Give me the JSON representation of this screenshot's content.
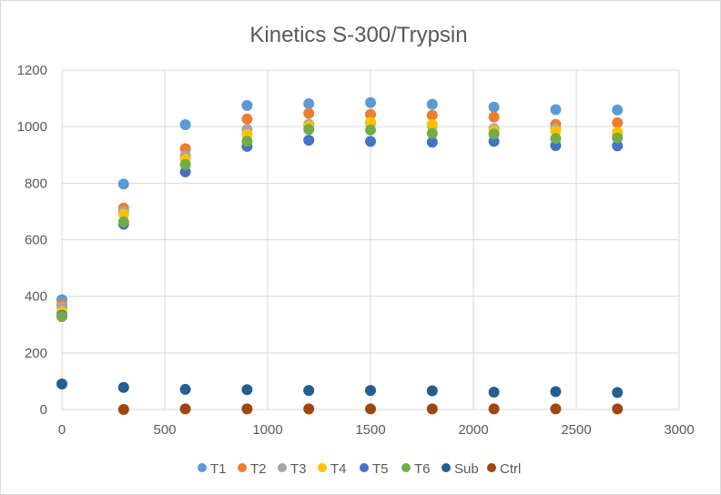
{
  "chart_data": {
    "type": "scatter",
    "title": "Kinetics S-300/Trypsin",
    "xlabel": "",
    "ylabel": "",
    "xlim": [
      0,
      3000
    ],
    "ylim": [
      0,
      1200
    ],
    "xticks": [
      "0",
      "500",
      "1000",
      "1500",
      "2000",
      "2500",
      "3000"
    ],
    "yticks": [
      "0",
      "200",
      "400",
      "600",
      "800",
      "1000",
      "1200"
    ],
    "grid": true,
    "legend_position": "bottom",
    "series": [
      {
        "name": "T1",
        "color": "#5B9BD5",
        "points": [
          [
            0,
            388
          ],
          [
            300,
            797
          ],
          [
            600,
            1007
          ],
          [
            900,
            1075
          ],
          [
            1200,
            1081
          ],
          [
            1500,
            1085
          ],
          [
            1800,
            1079
          ],
          [
            2100,
            1069
          ],
          [
            2400,
            1060
          ],
          [
            2700,
            1059
          ]
        ]
      },
      {
        "name": "T2",
        "color": "#ED7D31",
        "points": [
          [
            0,
            370
          ],
          [
            300,
            712
          ],
          [
            600,
            922
          ],
          [
            900,
            1027
          ],
          [
            1200,
            1047
          ],
          [
            1500,
            1043
          ],
          [
            1800,
            1040
          ],
          [
            2100,
            1034
          ],
          [
            2400,
            1008
          ],
          [
            2700,
            1014
          ]
        ]
      },
      {
        "name": "T3",
        "color": "#A5A5A5",
        "points": [
          [
            0,
            362
          ],
          [
            300,
            700
          ],
          [
            600,
            898
          ],
          [
            900,
            990
          ],
          [
            1200,
            1008
          ],
          [
            1500,
            1012
          ],
          [
            1800,
            1002
          ],
          [
            2100,
            993
          ],
          [
            2400,
            993
          ],
          [
            2700,
            975
          ]
        ]
      },
      {
        "name": "T4",
        "color": "#FFC000",
        "points": [
          [
            0,
            345
          ],
          [
            300,
            690
          ],
          [
            600,
            885
          ],
          [
            900,
            972
          ],
          [
            1200,
            1002
          ],
          [
            1500,
            1016
          ],
          [
            1800,
            1007
          ],
          [
            2100,
            985
          ],
          [
            2400,
            985
          ],
          [
            2700,
            980
          ]
        ]
      },
      {
        "name": "T5",
        "color": "#4472C4",
        "points": [
          [
            0,
            333
          ],
          [
            300,
            655
          ],
          [
            600,
            840
          ],
          [
            900,
            930
          ],
          [
            1200,
            952
          ],
          [
            1500,
            948
          ],
          [
            1800,
            945
          ],
          [
            2100,
            948
          ],
          [
            2400,
            933
          ],
          [
            2700,
            932
          ]
        ]
      },
      {
        "name": "T6",
        "color": "#70AD47",
        "points": [
          [
            0,
            328
          ],
          [
            300,
            663
          ],
          [
            600,
            866
          ],
          [
            900,
            948
          ],
          [
            1200,
            990
          ],
          [
            1500,
            988
          ],
          [
            1800,
            976
          ],
          [
            2100,
            974
          ],
          [
            2400,
            958
          ],
          [
            2700,
            960
          ]
        ]
      },
      {
        "name": "Sub",
        "color": "#255E91",
        "points": [
          [
            0,
            90
          ],
          [
            300,
            78
          ],
          [
            600,
            71
          ],
          [
            900,
            70
          ],
          [
            1200,
            67
          ],
          [
            1500,
            67
          ],
          [
            1800,
            66
          ],
          [
            2100,
            61
          ],
          [
            2400,
            63
          ],
          [
            2700,
            60
          ]
        ]
      },
      {
        "name": "Ctrl",
        "color": "#9E480E",
        "points": [
          [
            300,
            0
          ],
          [
            600,
            2
          ],
          [
            900,
            2
          ],
          [
            1200,
            2
          ],
          [
            1500,
            2
          ],
          [
            1800,
            2
          ],
          [
            2100,
            2
          ],
          [
            2400,
            2
          ],
          [
            2700,
            2
          ]
        ]
      }
    ]
  }
}
